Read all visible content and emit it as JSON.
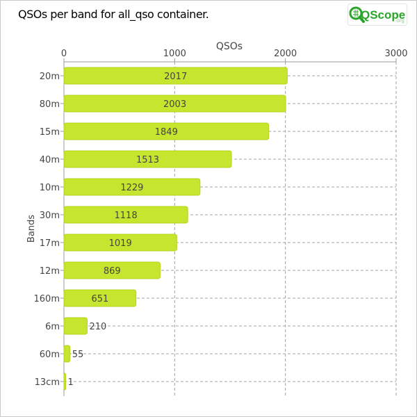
{
  "title": "QSOs per band for all_qso container.",
  "logo": {
    "brand": "QScope",
    "suffix": ".org"
  },
  "colors": {
    "bar": "#c6e52e",
    "bar_stroke": "#b5d41f",
    "grid": "#a0a0a0",
    "axis": "#999999",
    "text": "#444444",
    "logo_green": "#2aa52a"
  },
  "chart_data": {
    "type": "bar",
    "orientation": "horizontal",
    "categories": [
      "20m",
      "80m",
      "15m",
      "40m",
      "10m",
      "30m",
      "17m",
      "12m",
      "160m",
      "6m",
      "60m",
      "13cm"
    ],
    "values": [
      2017,
      2003,
      1849,
      1513,
      1229,
      1118,
      1019,
      869,
      651,
      210,
      55,
      1
    ],
    "value_labels": [
      "2017",
      "2003",
      "1849",
      "1513",
      "1229",
      "1118",
      "1019",
      "869",
      "651",
      "210",
      "55",
      "1"
    ],
    "xlabel": "QSOs",
    "ylabel": "Bands",
    "xlim": [
      0,
      3000
    ],
    "xticks": [
      0,
      1000,
      2000,
      3000
    ],
    "xtick_labels": [
      "0",
      "1000",
      "2000",
      "3000"
    ],
    "x_axis_position": "top",
    "grid": true
  }
}
